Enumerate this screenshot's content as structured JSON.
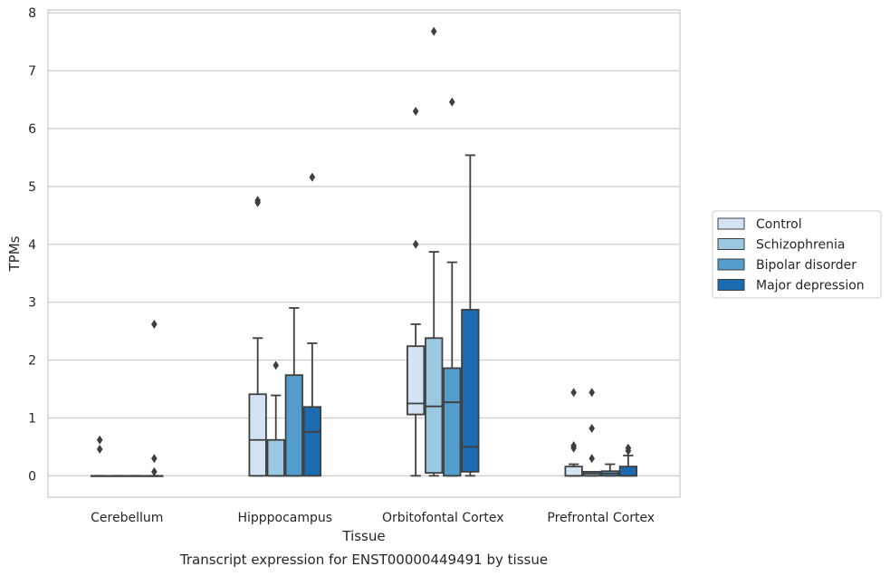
{
  "chart_data": {
    "type": "box",
    "title": "",
    "caption": "Transcript expression for ENST00000449491 by tissue",
    "xlabel": "Tissue",
    "ylabel": "TPMs",
    "ylim": [
      -0.37,
      8.05
    ],
    "yticks": [
      0,
      1,
      2,
      3,
      4,
      5,
      6,
      7,
      8
    ],
    "grid": "horizontal",
    "legend_position": "right",
    "categories": [
      "Cerebellum",
      "Hipppocampus",
      "Orbitofontal Cortex",
      "Prefrontal Cortex"
    ],
    "series": [
      {
        "name": "Control",
        "color": "#d2e3f3",
        "boxes": [
          {
            "q1": 0,
            "median": 0,
            "q3": 0,
            "whisker_low": 0,
            "whisker_high": 0,
            "outliers": [
              0.62,
              0.46
            ]
          },
          {
            "q1": 0,
            "median": 0.62,
            "q3": 1.41,
            "whisker_low": 0,
            "whisker_high": 2.38,
            "outliers": [
              4.72,
              4.76
            ]
          },
          {
            "q1": 1.06,
            "median": 1.25,
            "q3": 2.24,
            "whisker_low": 0,
            "whisker_high": 2.62,
            "outliers": [
              4.0,
              6.3
            ]
          },
          {
            "q1": 0,
            "median": 0,
            "q3": 0.16,
            "whisker_low": 0,
            "whisker_high": 0.2,
            "outliers": [
              0.48,
              0.52,
              1.44
            ]
          }
        ]
      },
      {
        "name": "Schizophrenia",
        "color": "#9ac8e0",
        "boxes": [
          {
            "q1": 0,
            "median": 0,
            "q3": 0,
            "whisker_low": 0,
            "whisker_high": 0,
            "outliers": []
          },
          {
            "q1": 0,
            "median": 0,
            "q3": 0.62,
            "whisker_low": 0,
            "whisker_high": 1.39,
            "outliers": [
              1.91
            ]
          },
          {
            "q1": 0.05,
            "median": 1.2,
            "q3": 2.38,
            "whisker_low": 0,
            "whisker_high": 3.87,
            "outliers": [
              7.68
            ]
          },
          {
            "q1": 0,
            "median": 0.04,
            "q3": 0.07,
            "whisker_low": 0,
            "whisker_high": 0.07,
            "outliers": [
              0.3,
              0.82,
              1.44
            ]
          }
        ]
      },
      {
        "name": "Bipolar disorder",
        "color": "#529dcc",
        "boxes": [
          {
            "q1": 0,
            "median": 0,
            "q3": 0,
            "whisker_low": 0,
            "whisker_high": 0,
            "outliers": []
          },
          {
            "q1": 0,
            "median": 0,
            "q3": 1.74,
            "whisker_low": 0,
            "whisker_high": 2.9,
            "outliers": []
          },
          {
            "q1": 0,
            "median": 1.27,
            "q3": 1.86,
            "whisker_low": 0,
            "whisker_high": 3.69,
            "outliers": [
              6.46
            ]
          },
          {
            "q1": 0,
            "median": 0.04,
            "q3": 0.08,
            "whisker_low": 0,
            "whisker_high": 0.2,
            "outliers": []
          }
        ]
      },
      {
        "name": "Major depression",
        "color": "#1c6aaf",
        "boxes": [
          {
            "q1": 0,
            "median": 0,
            "q3": 0,
            "whisker_low": 0,
            "whisker_high": 0,
            "outliers": [
              2.62,
              0.3,
              0.07
            ]
          },
          {
            "q1": 0,
            "median": 0.76,
            "q3": 1.19,
            "whisker_low": 0,
            "whisker_high": 2.29,
            "outliers": [
              5.16
            ]
          },
          {
            "q1": 0.07,
            "median": 0.5,
            "q3": 2.87,
            "whisker_low": 0,
            "whisker_high": 5.54,
            "outliers": []
          },
          {
            "q1": 0,
            "median": 0,
            "q3": 0.16,
            "whisker_low": 0,
            "whisker_high": 0.35,
            "outliers": [
              0.43,
              0.48
            ]
          }
        ]
      }
    ]
  }
}
